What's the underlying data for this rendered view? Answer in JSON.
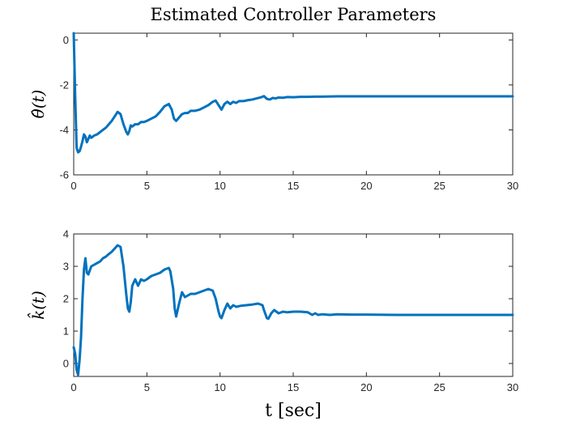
{
  "title": "Estimated Controller Parameters",
  "colors": {
    "series": "#0072BD",
    "axis": "#262626"
  },
  "chart_data": [
    {
      "type": "line",
      "ylabel": "θ̂(t)",
      "xlim": [
        0,
        30
      ],
      "ylim": [
        -6,
        0.3
      ],
      "xticks": [
        0,
        5,
        10,
        15,
        20,
        25,
        30
      ],
      "xtick_labels": [
        "0",
        "5",
        "10",
        "15",
        "20",
        "25",
        "30"
      ],
      "yticks": [
        -6,
        -4,
        -2,
        0
      ],
      "ytick_labels": [
        "-6",
        "-4",
        "-2",
        "0"
      ],
      "grid": false,
      "series": [
        {
          "x": [
            0,
            0.1,
            0.2,
            0.3,
            0.4,
            0.5,
            0.6,
            0.7,
            0.8,
            0.9,
            1.0,
            1.1,
            1.2,
            1.4,
            1.6,
            1.8,
            2.0,
            2.2,
            2.4,
            2.6,
            2.8,
            3.0,
            3.2,
            3.4,
            3.6,
            3.7,
            3.8,
            3.9,
            4.0,
            4.2,
            4.4,
            4.6,
            4.8,
            5.0,
            5.3,
            5.6,
            5.9,
            6.2,
            6.5,
            6.7,
            6.85,
            7.0,
            7.2,
            7.4,
            7.6,
            7.8,
            8.0,
            8.3,
            8.6,
            8.9,
            9.2,
            9.5,
            9.7,
            9.9,
            10.1,
            10.3,
            10.5,
            10.7,
            10.9,
            11.1,
            11.3,
            11.6,
            11.9,
            12.2,
            12.5,
            12.8,
            13.0,
            13.2,
            13.4,
            13.6,
            13.8,
            14.0,
            14.3,
            14.6,
            15.0,
            15.5,
            16.0,
            16.5,
            17.0,
            18.0,
            19.0,
            20.0,
            22.0,
            25.0,
            27.5,
            30.0
          ],
          "y": [
            0.3,
            -2.5,
            -4.8,
            -5.0,
            -4.95,
            -4.75,
            -4.5,
            -4.2,
            -4.3,
            -4.55,
            -4.4,
            -4.25,
            -4.35,
            -4.25,
            -4.2,
            -4.1,
            -4.0,
            -3.9,
            -3.75,
            -3.6,
            -3.4,
            -3.2,
            -3.3,
            -3.75,
            -4.1,
            -4.2,
            -4.05,
            -3.8,
            -3.85,
            -3.75,
            -3.75,
            -3.65,
            -3.65,
            -3.6,
            -3.5,
            -3.4,
            -3.2,
            -2.95,
            -2.85,
            -3.1,
            -3.5,
            -3.6,
            -3.45,
            -3.3,
            -3.25,
            -3.25,
            -3.15,
            -3.15,
            -3.1,
            -3.0,
            -2.9,
            -2.75,
            -2.7,
            -2.9,
            -3.1,
            -2.85,
            -2.75,
            -2.85,
            -2.75,
            -2.8,
            -2.72,
            -2.72,
            -2.68,
            -2.65,
            -2.6,
            -2.55,
            -2.5,
            -2.62,
            -2.65,
            -2.58,
            -2.6,
            -2.56,
            -2.57,
            -2.54,
            -2.55,
            -2.53,
            -2.53,
            -2.52,
            -2.52,
            -2.51,
            -2.51,
            -2.51,
            -2.51,
            -2.51,
            -2.51,
            -2.51
          ]
        }
      ]
    },
    {
      "type": "line",
      "ylabel": "k̂(t)",
      "xlabel": "t [sec]",
      "xlim": [
        0,
        30
      ],
      "ylim": [
        -0.4,
        4
      ],
      "xticks": [
        0,
        5,
        10,
        15,
        20,
        25,
        30
      ],
      "xtick_labels": [
        "0",
        "5",
        "10",
        "15",
        "20",
        "25",
        "30"
      ],
      "yticks": [
        0,
        1,
        2,
        3,
        4
      ],
      "ytick_labels": [
        "0",
        "1",
        "2",
        "3",
        "4"
      ],
      "grid": false,
      "series": [
        {
          "x": [
            0,
            0.1,
            0.2,
            0.3,
            0.4,
            0.5,
            0.6,
            0.7,
            0.8,
            0.9,
            1.0,
            1.2,
            1.4,
            1.6,
            1.8,
            2.0,
            2.2,
            2.4,
            2.6,
            2.8,
            3.0,
            3.2,
            3.4,
            3.6,
            3.7,
            3.8,
            3.9,
            4.0,
            4.2,
            4.4,
            4.6,
            4.8,
            5.0,
            5.3,
            5.6,
            5.9,
            6.2,
            6.5,
            6.6,
            6.8,
            6.9,
            7.0,
            7.2,
            7.4,
            7.6,
            7.8,
            8.0,
            8.3,
            8.6,
            8.9,
            9.2,
            9.5,
            9.7,
            9.9,
            10.0,
            10.1,
            10.3,
            10.5,
            10.7,
            10.9,
            11.1,
            11.4,
            11.8,
            12.2,
            12.6,
            12.9,
            13.0,
            13.2,
            13.3,
            13.5,
            13.7,
            14.0,
            14.3,
            14.6,
            15.0,
            15.5,
            16.0,
            16.3,
            16.5,
            16.7,
            17.0,
            17.5,
            18.0,
            19.0,
            20.0,
            22.0,
            25.0,
            27.5,
            30.0
          ],
          "y": [
            0.5,
            0.3,
            -0.2,
            -0.35,
            0.1,
            0.8,
            2.0,
            2.9,
            3.25,
            2.8,
            2.75,
            3.0,
            3.05,
            3.1,
            3.15,
            3.25,
            3.3,
            3.38,
            3.45,
            3.55,
            3.65,
            3.6,
            3.0,
            2.1,
            1.7,
            1.6,
            1.9,
            2.4,
            2.6,
            2.4,
            2.6,
            2.55,
            2.6,
            2.7,
            2.75,
            2.8,
            2.9,
            2.95,
            2.85,
            2.3,
            1.7,
            1.45,
            1.85,
            2.2,
            2.05,
            2.1,
            2.15,
            2.15,
            2.2,
            2.25,
            2.3,
            2.25,
            2.0,
            1.6,
            1.45,
            1.4,
            1.65,
            1.85,
            1.7,
            1.8,
            1.75,
            1.78,
            1.8,
            1.82,
            1.85,
            1.8,
            1.65,
            1.4,
            1.38,
            1.55,
            1.65,
            1.55,
            1.6,
            1.58,
            1.6,
            1.6,
            1.58,
            1.5,
            1.55,
            1.5,
            1.52,
            1.5,
            1.52,
            1.51,
            1.51,
            1.5,
            1.5,
            1.5,
            1.5
          ]
        }
      ]
    }
  ]
}
